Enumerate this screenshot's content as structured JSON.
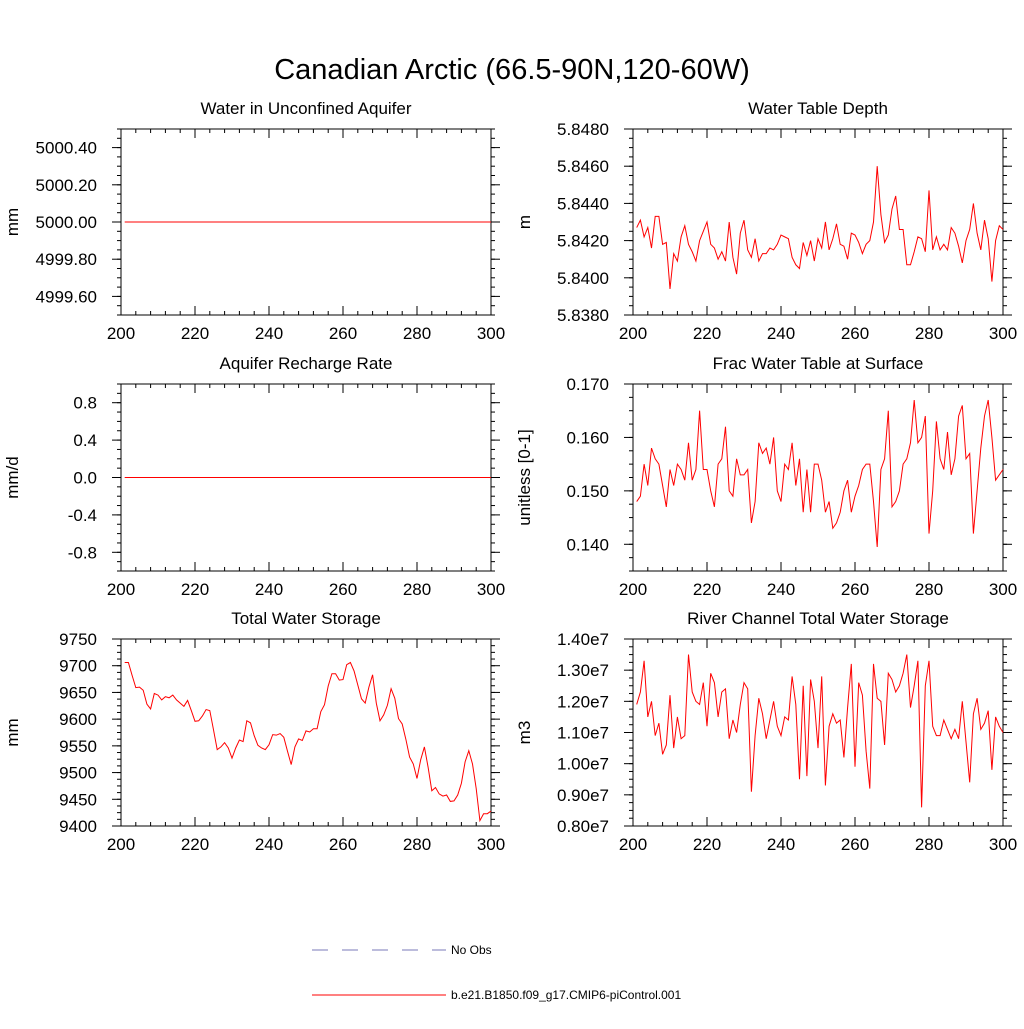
{
  "figure": {
    "title": "Canadian Arctic (66.5-90N,120-60W)"
  },
  "legend": {
    "items": [
      {
        "label": "No Obs",
        "color": "#7a7ab8",
        "style": "dashed"
      },
      {
        "label": "b.e21.B1850.f09_g17.CMIP6-piControl.001",
        "color": "#ff0000",
        "style": "solid"
      }
    ]
  },
  "chart_data": [
    {
      "type": "line",
      "title": "Water in Unconfined Aquifer",
      "xlabel": "",
      "ylabel": "mm",
      "xlim": [
        200,
        300
      ],
      "ylim": [
        4999.5,
        5000.5
      ],
      "xticks": [
        200,
        220,
        240,
        260,
        280,
        300
      ],
      "xtick_labels": [
        "200",
        "220",
        "240",
        "260",
        "280",
        "300"
      ],
      "yticks": [
        4999.6,
        4999.8,
        5000.0,
        5000.2,
        5000.4
      ],
      "ytick_labels": [
        "4999.60",
        "4999.80",
        "5000.00",
        "5000.20",
        "5000.40"
      ],
      "x_start": 201,
      "series": [
        {
          "color": "#ff0000",
          "values": [
            5000,
            5000,
            5000,
            5000,
            5000,
            5000,
            5000,
            5000,
            5000,
            5000,
            5000,
            5000,
            5000,
            5000,
            5000,
            5000,
            5000,
            5000,
            5000,
            5000,
            5000,
            5000,
            5000,
            5000,
            5000,
            5000,
            5000,
            5000,
            5000,
            5000,
            5000,
            5000,
            5000,
            5000,
            5000,
            5000,
            5000,
            5000,
            5000,
            5000,
            5000,
            5000,
            5000,
            5000,
            5000,
            5000,
            5000,
            5000,
            5000,
            5000,
            5000,
            5000,
            5000,
            5000,
            5000,
            5000,
            5000,
            5000,
            5000,
            5000,
            5000,
            5000,
            5000,
            5000,
            5000,
            5000,
            5000,
            5000,
            5000,
            5000,
            5000,
            5000,
            5000,
            5000,
            5000,
            5000,
            5000,
            5000,
            5000,
            5000,
            5000,
            5000,
            5000,
            5000,
            5000,
            5000,
            5000,
            5000,
            5000,
            5000,
            5000,
            5000,
            5000,
            5000,
            5000,
            5000,
            5000,
            5000,
            5000,
            5000
          ]
        }
      ]
    },
    {
      "type": "line",
      "title": "Water Table Depth",
      "xlabel": "",
      "ylabel": "m",
      "xlim": [
        200,
        300
      ],
      "ylim": [
        5.838,
        5.848
      ],
      "xticks": [
        200,
        220,
        240,
        260,
        280,
        300
      ],
      "xtick_labels": [
        "200",
        "220",
        "240",
        "260",
        "280",
        "300"
      ],
      "yticks": [
        5.838,
        5.84,
        5.842,
        5.844,
        5.846,
        5.848
      ],
      "ytick_labels": [
        "5.8380",
        "5.8400",
        "5.8420",
        "5.8440",
        "5.8460",
        "5.8480"
      ],
      "x_start": 201,
      "series": [
        {
          "color": "#ff0000",
          "values": [
            5.8427,
            5.8431,
            5.8422,
            5.8427,
            5.8416,
            5.8433,
            5.8433,
            5.8418,
            5.8419,
            5.8394,
            5.8413,
            5.8409,
            5.8422,
            5.8428,
            5.8418,
            5.8414,
            5.8409,
            5.842,
            5.8425,
            5.843,
            5.8418,
            5.8416,
            5.841,
            5.8414,
            5.8409,
            5.843,
            5.8411,
            5.8402,
            5.8424,
            5.8431,
            5.8415,
            5.8411,
            5.8421,
            5.8409,
            5.8413,
            5.8413,
            5.8416,
            5.8415,
            5.8418,
            5.8423,
            5.8422,
            5.8421,
            5.8411,
            5.8407,
            5.8405,
            5.8419,
            5.8412,
            5.842,
            5.8409,
            5.8421,
            5.8416,
            5.843,
            5.8415,
            5.8421,
            5.8429,
            5.8418,
            5.8417,
            5.841,
            5.8424,
            5.8423,
            5.8419,
            5.8413,
            5.8418,
            5.842,
            5.843,
            5.846,
            5.8434,
            5.8419,
            5.8423,
            5.8437,
            5.8444,
            5.8426,
            5.8426,
            5.8407,
            5.8407,
            5.8414,
            5.8422,
            5.8421,
            5.8414,
            5.8447,
            5.8415,
            5.8422,
            5.8415,
            5.8418,
            5.8415,
            5.8427,
            5.8424,
            5.8417,
            5.8408,
            5.842,
            5.8426,
            5.844,
            5.8424,
            5.8415,
            5.8431,
            5.8421,
            5.8398,
            5.842,
            5.8428,
            5.8426
          ]
        }
      ]
    },
    {
      "type": "line",
      "title": "Aquifer Recharge Rate",
      "xlabel": "",
      "ylabel": "mm/d",
      "xlim": [
        200,
        300
      ],
      "ylim": [
        -1,
        1
      ],
      "xticks": [
        200,
        220,
        240,
        260,
        280,
        300
      ],
      "xtick_labels": [
        "200",
        "220",
        "240",
        "260",
        "280",
        "300"
      ],
      "yticks": [
        -0.8,
        -0.4,
        0,
        0.4,
        0.8
      ],
      "ytick_labels": [
        "-0.8",
        "-0.4",
        "0.0",
        "0.4",
        "0.8"
      ],
      "x_start": 201,
      "series": [
        {
          "color": "#ff0000",
          "values": [
            0,
            0,
            0,
            0,
            0,
            0,
            0,
            0,
            0,
            0,
            0,
            0,
            0,
            0,
            0,
            0,
            0,
            0,
            0,
            0,
            0,
            0,
            0,
            0,
            0,
            0,
            0,
            0,
            0,
            0,
            0,
            0,
            0,
            0,
            0,
            0,
            0,
            0,
            0,
            0,
            0,
            0,
            0,
            0,
            0,
            0,
            0,
            0,
            0,
            0,
            0,
            0,
            0,
            0,
            0,
            0,
            0,
            0,
            0,
            0,
            0,
            0,
            0,
            0,
            0,
            0,
            0,
            0,
            0,
            0,
            0,
            0,
            0,
            0,
            0,
            0,
            0,
            0,
            0,
            0,
            0,
            0,
            0,
            0,
            0,
            0,
            0,
            0,
            0,
            0,
            0,
            0,
            0,
            0,
            0,
            0,
            0,
            0,
            0,
            0
          ]
        }
      ]
    },
    {
      "type": "line",
      "title": "Frac Water Table at Surface",
      "xlabel": "",
      "ylabel": "unitless [0-1]",
      "xlim": [
        200,
        300
      ],
      "ylim": [
        0.135,
        0.17
      ],
      "xticks": [
        200,
        220,
        240,
        260,
        280,
        300
      ],
      "xtick_labels": [
        "200",
        "220",
        "240",
        "260",
        "280",
        "300"
      ],
      "yticks": [
        0.14,
        0.15,
        0.16,
        0.17
      ],
      "ytick_labels": [
        "0.140",
        "0.150",
        "0.160",
        "0.170"
      ],
      "x_start": 201,
      "series": [
        {
          "color": "#ff0000",
          "values": [
            0.148,
            0.149,
            0.155,
            0.151,
            0.158,
            0.156,
            0.155,
            0.151,
            0.147,
            0.154,
            0.151,
            0.155,
            0.154,
            0.152,
            0.159,
            0.152,
            0.154,
            0.165,
            0.154,
            0.154,
            0.15,
            0.147,
            0.155,
            0.156,
            0.162,
            0.15,
            0.149,
            0.156,
            0.153,
            0.153,
            0.154,
            0.144,
            0.148,
            0.159,
            0.157,
            0.158,
            0.155,
            0.16,
            0.15,
            0.148,
            0.155,
            0.154,
            0.159,
            0.151,
            0.156,
            0.146,
            0.154,
            0.146,
            0.155,
            0.155,
            0.152,
            0.146,
            0.148,
            0.143,
            0.144,
            0.146,
            0.15,
            0.152,
            0.146,
            0.149,
            0.151,
            0.154,
            0.155,
            0.155,
            0.148,
            0.1395,
            0.154,
            0.156,
            0.165,
            0.147,
            0.148,
            0.15,
            0.155,
            0.156,
            0.159,
            0.167,
            0.159,
            0.16,
            0.164,
            0.142,
            0.15,
            0.163,
            0.156,
            0.154,
            0.161,
            0.153,
            0.156,
            0.164,
            0.166,
            0.156,
            0.157,
            0.142,
            0.15,
            0.158,
            0.164,
            0.167,
            0.16,
            0.152,
            0.153,
            0.154
          ]
        }
      ]
    },
    {
      "type": "line",
      "title": "Total Water Storage",
      "xlabel": "",
      "ylabel": "mm",
      "xlim": [
        200,
        300
      ],
      "ylim": [
        9400,
        9750
      ],
      "xticks": [
        200,
        220,
        240,
        260,
        280,
        300
      ],
      "xtick_labels": [
        "200",
        "220",
        "240",
        "260",
        "280",
        "300"
      ],
      "yticks": [
        9400,
        9450,
        9500,
        9550,
        9600,
        9650,
        9700,
        9750
      ],
      "ytick_labels": [
        "9400",
        "9450",
        "9500",
        "9550",
        "9600",
        "9650",
        "9700",
        "9750"
      ],
      "x_start": 201,
      "series": [
        {
          "color": "#ff0000",
          "values": [
            9706,
            9706,
            9682,
            9659,
            9660,
            9654,
            9628,
            9619,
            9648,
            9645,
            9636,
            9642,
            9640,
            9645,
            9636,
            9630,
            9624,
            9635,
            9616,
            9596,
            9597,
            9606,
            9618,
            9616,
            9580,
            9543,
            9548,
            9556,
            9546,
            9527,
            9546,
            9561,
            9558,
            9597,
            9593,
            9569,
            9551,
            9546,
            9543,
            9552,
            9571,
            9570,
            9573,
            9566,
            9540,
            9515,
            9548,
            9563,
            9560,
            9578,
            9576,
            9582,
            9582,
            9614,
            9627,
            9662,
            9685,
            9685,
            9673,
            9674,
            9702,
            9706,
            9690,
            9664,
            9638,
            9630,
            9660,
            9683,
            9630,
            9597,
            9608,
            9626,
            9657,
            9639,
            9601,
            9591,
            9562,
            9529,
            9516,
            9489,
            9524,
            9548,
            9510,
            9466,
            9472,
            9460,
            9456,
            9458,
            9446,
            9447,
            9458,
            9480,
            9520,
            9541,
            9516,
            9470,
            9410,
            9423,
            9423,
            9428
          ]
        }
      ]
    },
    {
      "type": "line",
      "title": "River Channel Total Water Storage",
      "xlabel": "",
      "ylabel": "m3",
      "xlim": [
        200,
        300
      ],
      "ylim": [
        8000000,
        14000000
      ],
      "xticks": [
        200,
        220,
        240,
        260,
        280,
        300
      ],
      "xtick_labels": [
        "200",
        "220",
        "240",
        "260",
        "280",
        "300"
      ],
      "yticks": [
        8000000,
        9000000,
        10000000,
        11000000,
        12000000,
        13000000,
        14000000
      ],
      "ytick_labels": [
        "0.80e7",
        "0.90e7",
        "1.00e7",
        "1.10e7",
        "1.20e7",
        "1.30e7",
        "1.40e7"
      ],
      "x_start": 201,
      "series": [
        {
          "color": "#ff0000",
          "values": [
            11900000,
            12300000,
            13300000,
            11500000,
            12000000,
            10900000,
            11300000,
            10300000,
            10600000,
            12200000,
            10500000,
            11500000,
            10800000,
            10900000,
            13500000,
            12300000,
            12000000,
            11900000,
            12600000,
            11200000,
            12900000,
            12600000,
            11500000,
            12300000,
            12400000,
            10800000,
            11400000,
            11000000,
            11900000,
            12600000,
            12400000,
            9100000,
            10900000,
            12100000,
            11600000,
            10800000,
            11400000,
            12000000,
            11200000,
            10900000,
            11500000,
            11400000,
            12800000,
            11900000,
            9500000,
            12500000,
            9600000,
            12700000,
            12000000,
            10500000,
            12800000,
            9300000,
            11200000,
            11600000,
            11300000,
            11400000,
            10200000,
            11800000,
            13200000,
            9900000,
            12600000,
            12200000,
            10400000,
            9200000,
            13200000,
            12100000,
            12000000,
            10600000,
            12900000,
            12700000,
            12300000,
            12500000,
            12900000,
            13500000,
            11800000,
            12500000,
            13300000,
            8600000,
            12500000,
            13300000,
            11200000,
            10900000,
            10900000,
            11400000,
            11100000,
            10800000,
            11100000,
            10800000,
            12000000,
            10700000,
            9400000,
            11600000,
            12100000,
            11100000,
            11300000,
            11700000,
            9800000,
            11500000,
            11200000,
            11000000
          ]
        }
      ]
    }
  ]
}
